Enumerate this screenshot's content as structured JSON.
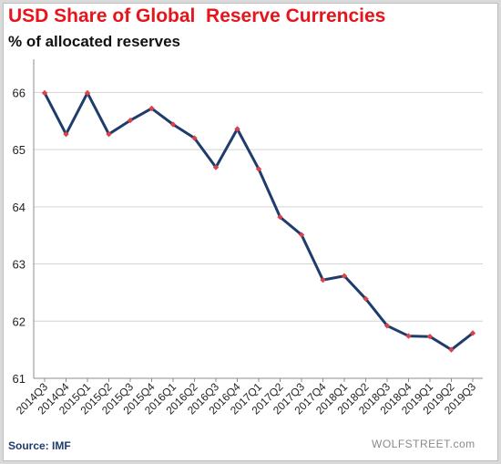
{
  "chart_data": {
    "type": "line",
    "title": "USD Share of Global  Reserve Currencies",
    "subtitle": "% of allocated reserves",
    "xlabel": "",
    "ylabel": "",
    "categories": [
      "2014Q3",
      "2014Q4",
      "2015Q1",
      "2015Q2",
      "2015Q3",
      "2015Q4",
      "2016Q1",
      "2016Q2",
      "2016Q3",
      "2016Q4",
      "2017Q1",
      "2017Q2",
      "2017Q3",
      "2017Q4",
      "2018Q1",
      "2018Q2",
      "2018Q3",
      "2018Q4",
      "2019Q1",
      "2019Q2",
      "2019Q3"
    ],
    "series": [
      {
        "values": [
          65.99,
          65.27,
          65.99,
          65.27,
          65.51,
          65.72,
          65.44,
          65.2,
          64.69,
          65.36,
          64.66,
          63.82,
          63.51,
          62.72,
          62.79,
          62.39,
          61.92,
          61.74,
          61.73,
          61.5,
          61.79
        ],
        "line_color": "#1f3c6d",
        "marker_color": "#d9434a"
      }
    ],
    "ylim": [
      61,
      66.5
    ],
    "yticks": [
      61,
      62,
      63,
      64,
      65,
      66
    ],
    "grid": "horizontal",
    "legend": "none"
  },
  "source": "Source: IMF",
  "watermark": "WOLFSTREET.com"
}
